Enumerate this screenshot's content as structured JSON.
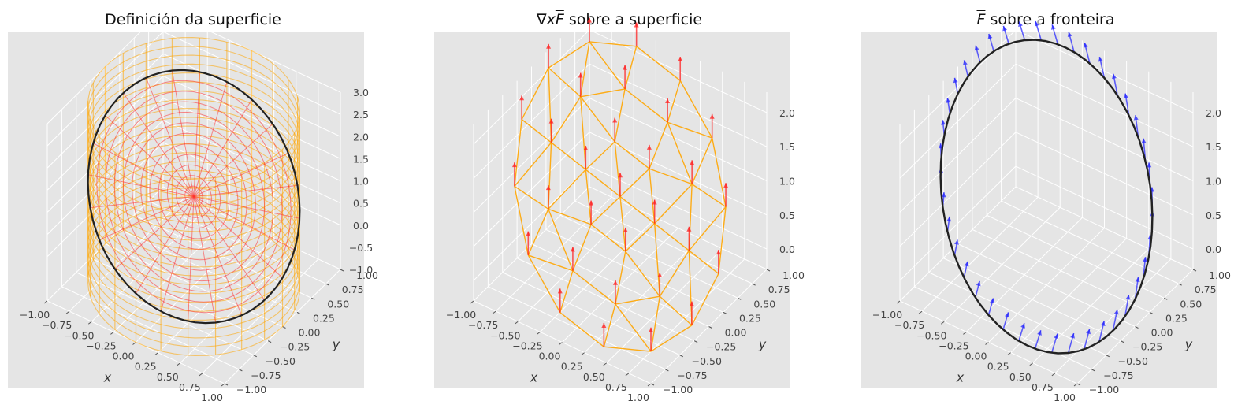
{
  "chart_data": [
    {
      "type": "3d-surface",
      "title": "Definición da superficie",
      "xlabel": "x",
      "ylabel": "y",
      "zlabel": "",
      "xlim": [
        -1.0,
        1.0
      ],
      "ylim": [
        -1.0,
        1.0
      ],
      "zlim": [
        -1.0,
        3.0
      ],
      "x_ticks": [
        "−1.00",
        "−0.75",
        "−0.50",
        "−0.25",
        "0.00",
        "0.25",
        "0.50",
        "0.75",
        "1.00"
      ],
      "y_ticks": [
        "−1.00",
        "−0.75",
        "−0.50",
        "−0.25",
        "0.00",
        "0.25",
        "0.50",
        "0.75",
        "1.00"
      ],
      "z_ticks": [
        "−1.0",
        "−0.5",
        "0.0",
        "0.5",
        "1.0",
        "1.5",
        "2.0",
        "2.5",
        "3.0"
      ],
      "elements": [
        {
          "name": "cylinder x²+y²=1 (wireframe)",
          "color": "#ffa500"
        },
        {
          "name": "plane surface disk (wireframe)",
          "color": "#ff4040"
        },
        {
          "name": "boundary curve",
          "color": "#222222"
        }
      ]
    },
    {
      "type": "3d-quiver",
      "title": "∇x F sobre a superficie",
      "xlabel": "x",
      "ylabel": "y",
      "zlabel": "",
      "xlim": [
        -1.0,
        1.0
      ],
      "ylim": [
        -1.0,
        1.0
      ],
      "zlim": [
        -0.3,
        2.3
      ],
      "x_ticks": [
        "−1.00",
        "−0.75",
        "−0.50",
        "−0.25",
        "0.00",
        "0.25",
        "0.50",
        "0.75",
        "1.00"
      ],
      "y_ticks": [
        "−1.00",
        "−0.75",
        "−0.50",
        "−0.25",
        "0.00",
        "0.25",
        "0.50",
        "0.75",
        "1.00"
      ],
      "z_ticks": [
        "0.0",
        "0.5",
        "1.0",
        "1.5",
        "2.0"
      ],
      "elements": [
        {
          "name": "triangulated surface",
          "color": "#ffa500"
        },
        {
          "name": "curl vectors",
          "color": "#ff2020"
        }
      ]
    },
    {
      "type": "3d-quiver",
      "title": "F sobre a fronteira",
      "xlabel": "x",
      "ylabel": "y",
      "zlabel": "",
      "xlim": [
        -1.0,
        1.0
      ],
      "ylim": [
        -1.0,
        1.0
      ],
      "zlim": [
        -0.3,
        2.3
      ],
      "x_ticks": [
        "−1.00",
        "−0.75",
        "−0.50",
        "−0.25",
        "0.00",
        "0.25",
        "0.50",
        "0.75",
        "1.00"
      ],
      "y_ticks": [
        "−1.00",
        "−0.75",
        "−0.50",
        "−0.25",
        "0.00",
        "0.25",
        "0.50",
        "0.75",
        "1.00"
      ],
      "z_ticks": [
        "0.0",
        "0.5",
        "1.0",
        "1.5",
        "2.0"
      ],
      "elements": [
        {
          "name": "boundary curve",
          "color": "#222222"
        },
        {
          "name": "field vectors",
          "color": "#2020ff"
        }
      ]
    }
  ],
  "titles": {
    "p1": "Definición da superficie",
    "p2_prefix": "∇x",
    "p2_vec": "F",
    "p2_suffix": " sobre a superficie",
    "p3_vec": "F",
    "p3_suffix": " sobre a fronteira"
  }
}
